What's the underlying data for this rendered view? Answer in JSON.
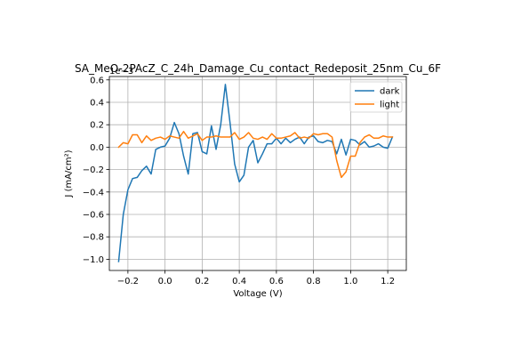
{
  "chart_data": {
    "type": "line",
    "title": "SA_MeO-2PAcZ_C_24h_Damage_Cu_contact_Redeposit_25nm_Cu_6F",
    "xlabel": "Voltage (V)",
    "ylabel": "J (mA/cm²)",
    "offset_text": "1e−3",
    "xlim": [
      -0.3,
      1.3
    ],
    "ylim": [
      -1.1,
      0.63
    ],
    "xticks": [
      -0.2,
      0.0,
      0.2,
      0.4,
      0.6,
      0.8,
      1.0,
      1.2
    ],
    "xtick_labels": [
      "−0.2",
      "0.0",
      "0.2",
      "0.4",
      "0.6",
      "0.8",
      "1.0",
      "1.2"
    ],
    "yticks": [
      -1.0,
      -0.8,
      -0.6,
      -0.4,
      -0.2,
      0.0,
      0.2,
      0.4,
      0.6
    ],
    "ytick_labels": [
      "−1.0",
      "−0.8",
      "−0.6",
      "−0.4",
      "−0.2",
      "0.0",
      "0.2",
      "0.4",
      "0.6"
    ],
    "grid": true,
    "legend": "top-right",
    "x": [
      -0.25,
      -0.225,
      -0.2,
      -0.175,
      -0.15,
      -0.125,
      -0.1,
      -0.075,
      -0.05,
      -0.025,
      0.0,
      0.025,
      0.05,
      0.075,
      0.1,
      0.125,
      0.15,
      0.175,
      0.2,
      0.225,
      0.25,
      0.275,
      0.3,
      0.325,
      0.35,
      0.375,
      0.4,
      0.425,
      0.45,
      0.475,
      0.5,
      0.525,
      0.55,
      0.575,
      0.6,
      0.625,
      0.65,
      0.675,
      0.7,
      0.725,
      0.75,
      0.775,
      0.8,
      0.825,
      0.85,
      0.875,
      0.9,
      0.925,
      0.95,
      0.975,
      1.0,
      1.025,
      1.05,
      1.075,
      1.1,
      1.125,
      1.15,
      1.175,
      1.2,
      1.225
    ],
    "series": [
      {
        "name": "dark",
        "color": "#1f77b4",
        "values": [
          -1.02,
          -0.6,
          -0.38,
          -0.28,
          -0.27,
          -0.21,
          -0.17,
          -0.24,
          -0.02,
          0.0,
          0.01,
          0.08,
          0.22,
          0.12,
          -0.08,
          -0.24,
          0.12,
          0.13,
          -0.04,
          -0.06,
          0.19,
          -0.02,
          0.2,
          0.56,
          0.22,
          -0.15,
          -0.31,
          -0.25,
          0.0,
          0.06,
          -0.14,
          -0.06,
          0.03,
          0.03,
          0.08,
          0.03,
          0.08,
          0.04,
          0.07,
          0.09,
          0.03,
          0.09,
          0.1,
          0.05,
          0.04,
          0.06,
          0.05,
          -0.06,
          0.07,
          -0.07,
          0.07,
          0.06,
          0.02,
          0.05,
          0.0,
          0.01,
          0.03,
          0.0,
          -0.01,
          0.09
        ]
      },
      {
        "name": "light",
        "color": "#ff7f0e",
        "values": [
          0.0,
          0.04,
          0.03,
          0.11,
          0.11,
          0.04,
          0.1,
          0.06,
          0.08,
          0.09,
          0.07,
          0.1,
          0.09,
          0.08,
          0.14,
          0.08,
          0.1,
          0.12,
          0.06,
          0.09,
          0.09,
          0.1,
          0.09,
          0.09,
          0.09,
          0.13,
          0.07,
          0.09,
          0.13,
          0.08,
          0.07,
          0.09,
          0.07,
          0.12,
          0.08,
          0.08,
          0.09,
          0.1,
          0.13,
          0.08,
          0.09,
          0.08,
          0.12,
          0.11,
          0.12,
          0.12,
          0.09,
          -0.12,
          -0.27,
          -0.22,
          -0.08,
          -0.08,
          0.04,
          0.09,
          0.11,
          0.08,
          0.08,
          0.1,
          0.09,
          0.09
        ]
      }
    ]
  }
}
